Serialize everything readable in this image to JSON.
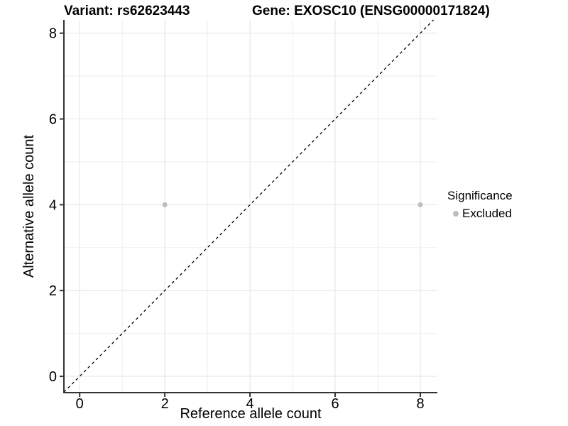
{
  "titles": {
    "variant": "Variant: rs62623443",
    "gene": "Gene: EXOSC10 (ENSG00000171824)"
  },
  "chart_data": {
    "type": "scatter",
    "title": "Variant: rs62623443  |  Gene: EXOSC10 (ENSG00000171824)",
    "xlabel": "Reference allele count",
    "ylabel": "Alternative allele count",
    "series": [
      {
        "name": "Excluded",
        "color": "#bdbdbd",
        "points": [
          {
            "x": 2,
            "y": 4
          },
          {
            "x": 8,
            "y": 4
          }
        ]
      }
    ],
    "identity_line": {
      "style": "dashed",
      "color": "#000000",
      "slope": 1,
      "intercept": 0
    },
    "x_major_ticks": [
      0,
      2,
      4,
      6,
      8
    ],
    "y_major_ticks": [
      0,
      2,
      4,
      6,
      8
    ],
    "x_minor_ticks": [
      1,
      3,
      5,
      7
    ],
    "y_minor_ticks": [
      1,
      3,
      5,
      7
    ],
    "xlim": [
      -0.37,
      8.4
    ],
    "ylim": [
      -0.38,
      8.31
    ],
    "grid": true,
    "legend": {
      "title": "Significance",
      "position": "right",
      "items": [
        {
          "label": "Excluded",
          "color": "#bdbdbd"
        }
      ]
    },
    "colors": {
      "background": "#ffffff",
      "grid_major": "#e3e3e3",
      "grid_minor": "#efefef",
      "axis_line": "#333333",
      "text": "#000000",
      "point_excluded": "#bdbdbd"
    }
  }
}
